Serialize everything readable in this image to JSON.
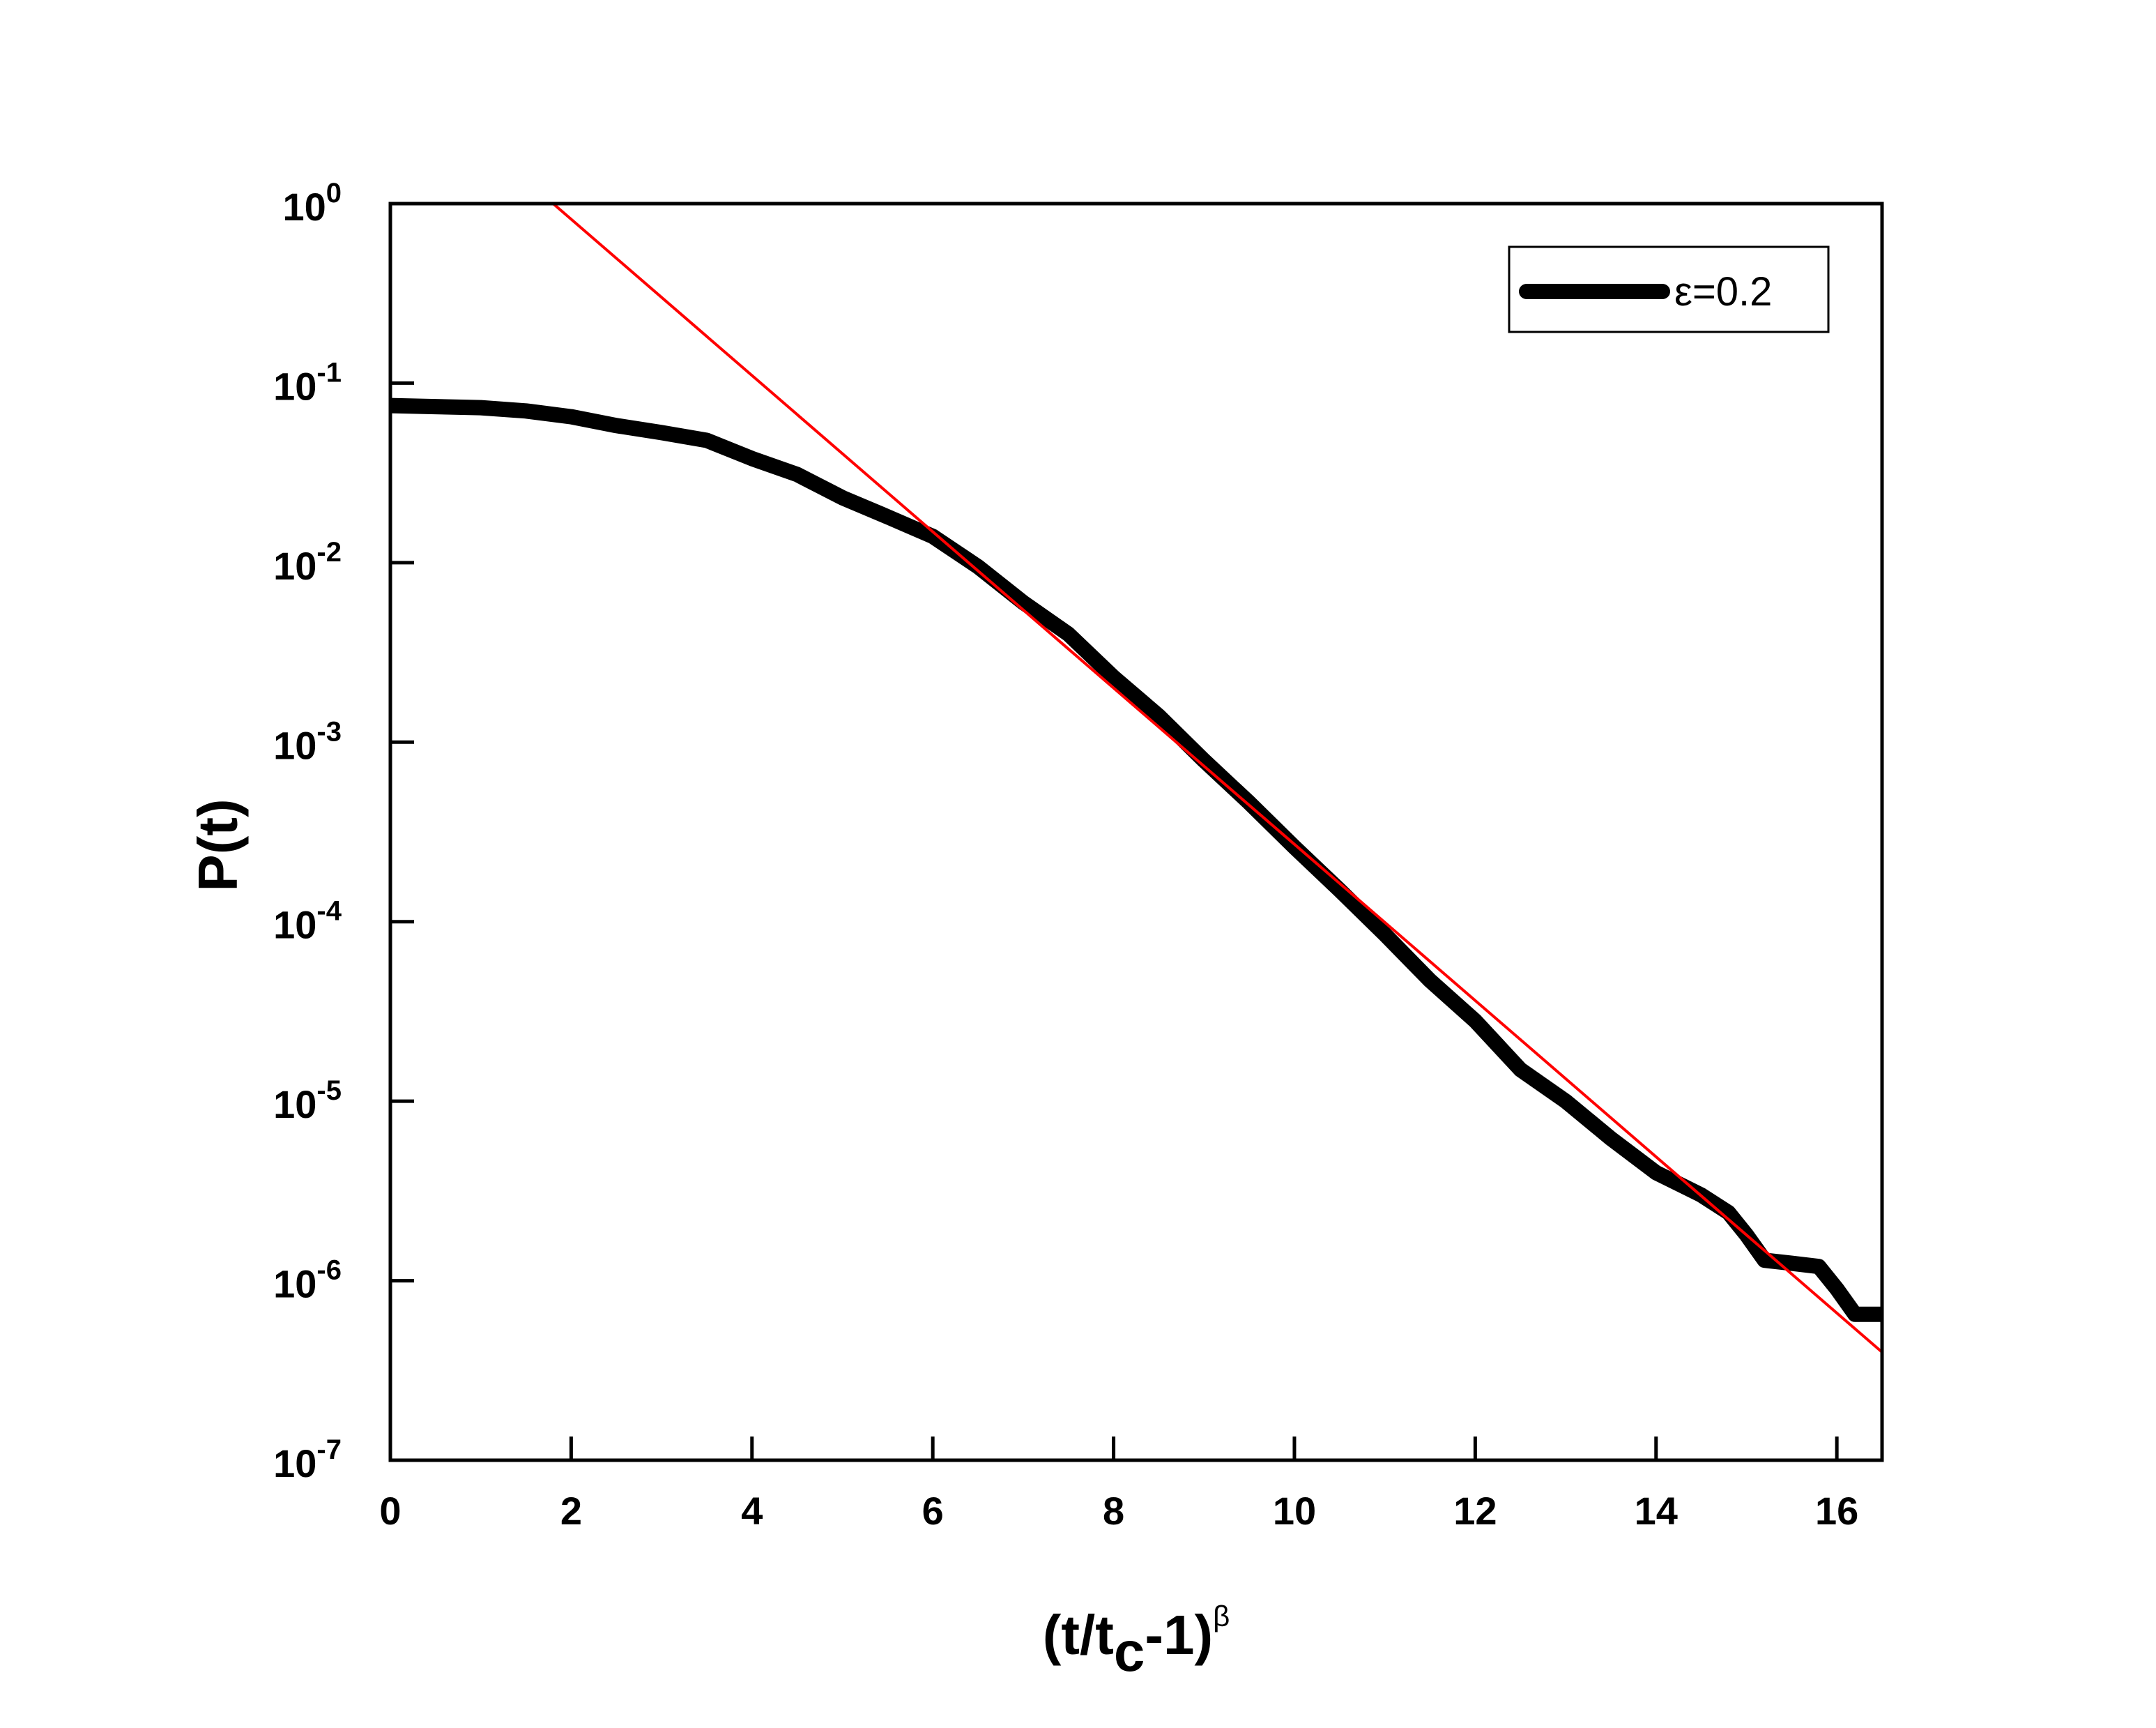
{
  "chart_data": {
    "type": "line",
    "xlabel": {
      "open": "(t/t",
      "sub": "c",
      "close": "-1)",
      "sup": "β"
    },
    "ylabel": "P(t)",
    "xlim": [
      0,
      16.5
    ],
    "ylim": [
      1e-07,
      1
    ],
    "yscale": "log",
    "grid": false,
    "legend_position": "top-right",
    "x_ticks": [
      {
        "value": 0,
        "label": "0"
      },
      {
        "value": 2,
        "label": "2"
      },
      {
        "value": 4,
        "label": "4"
      },
      {
        "value": 6,
        "label": "6"
      },
      {
        "value": 8,
        "label": "8"
      },
      {
        "value": 10,
        "label": "10"
      },
      {
        "value": 12,
        "label": "12"
      },
      {
        "value": 14,
        "label": "14"
      },
      {
        "value": 16,
        "label": "16"
      }
    ],
    "y_ticks": [
      {
        "exp": 0,
        "base": "10",
        "sup": "0"
      },
      {
        "exp": -1,
        "base": "10",
        "sup": "-1"
      },
      {
        "exp": -2,
        "base": "10",
        "sup": "-2"
      },
      {
        "exp": -3,
        "base": "10",
        "sup": "-3"
      },
      {
        "exp": -4,
        "base": "10",
        "sup": "-4"
      },
      {
        "exp": -5,
        "base": "10",
        "sup": "-5"
      },
      {
        "exp": -6,
        "base": "10",
        "sup": "-6"
      },
      {
        "exp": -7,
        "base": "10",
        "sup": "-7"
      }
    ],
    "series": [
      {
        "name": "ε=0.2",
        "color": "#000000",
        "style": "thick",
        "x": [
          0,
          0.5,
          1,
          1.5,
          2,
          2.5,
          3,
          3.5,
          4,
          4.5,
          5,
          5.5,
          6,
          6.5,
          7,
          7.5,
          8,
          8.5,
          9,
          9.5,
          10,
          10.5,
          11,
          11.5,
          12,
          12.5,
          13,
          13.5,
          14,
          14.5,
          14.8,
          15,
          15.2,
          15.5,
          15.8,
          16,
          16.2,
          16.5
        ],
        "y": [
          0.075,
          0.074,
          0.073,
          0.07,
          0.065,
          0.058,
          0.053,
          0.048,
          0.038,
          0.031,
          0.023,
          0.018,
          0.014,
          0.0095,
          0.006,
          0.004,
          0.0023,
          0.0014,
          0.00079,
          0.00046,
          0.00026,
          0.00015,
          8.5e-05,
          4.7e-05,
          2.8e-05,
          1.5e-05,
          1e-05,
          6.2e-06,
          4e-06,
          3e-06,
          2.4e-06,
          1.8e-06,
          1.3e-06,
          1.25e-06,
          1.2e-06,
          9e-07,
          6.5e-07,
          6.5e-07
        ]
      },
      {
        "name": "",
        "color": "#ff0000",
        "style": "thin",
        "x": [
          1.8,
          16.5
        ],
        "y": [
          1.0,
          4e-07
        ]
      }
    ]
  }
}
